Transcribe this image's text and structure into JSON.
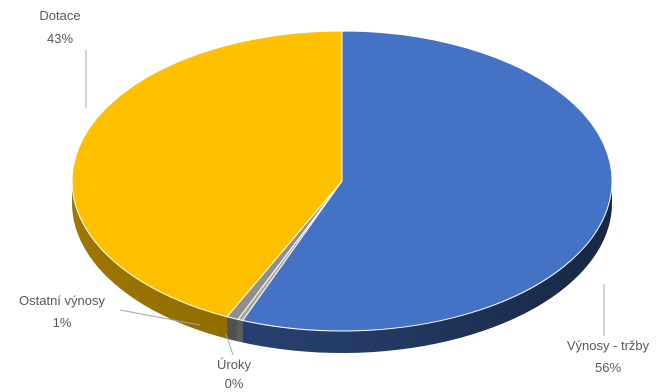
{
  "chart_data": {
    "type": "pie",
    "style": "3d",
    "slices": [
      {
        "label": "Výnosy - tržby",
        "percent_label": "56%",
        "value": 56,
        "color": "#4472c4"
      },
      {
        "label": "Úroky",
        "percent_label": "0%",
        "value": 0.3,
        "color": "#a5a5a5"
      },
      {
        "label": "Ostatní výnosy",
        "percent_label": "1%",
        "value": 0.7,
        "color": "#8f8f8f"
      },
      {
        "label": "Dotace",
        "percent_label": "43%",
        "value": 43,
        "color": "#ffc000"
      }
    ],
    "legend": "none"
  }
}
